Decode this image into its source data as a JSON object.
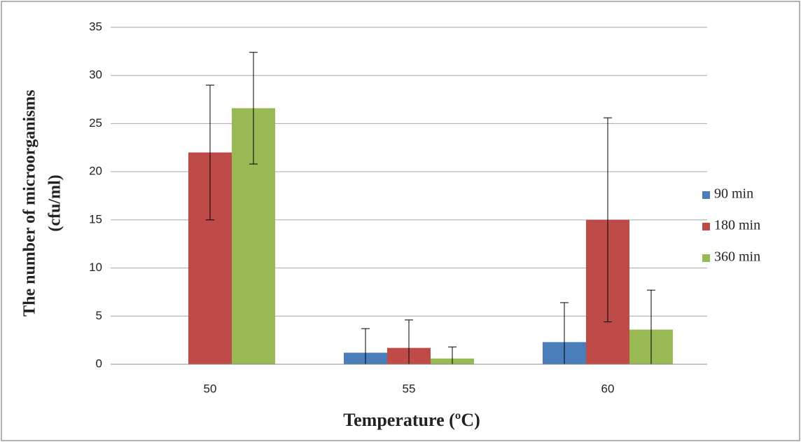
{
  "chart_data": {
    "type": "bar",
    "xlabel": "Temperature (ºC)",
    "ylabel": [
      "The number of microorganisms",
      "(cfu/ml)"
    ],
    "categories": [
      "50",
      "55",
      "60"
    ],
    "series": [
      {
        "name": "90 min",
        "color": "#4a7ebb",
        "values": [
          0,
          1.2,
          2.3
        ],
        "errors": [
          0,
          2.5,
          4.1
        ]
      },
      {
        "name": "180 min",
        "color": "#be4b48",
        "values": [
          22.0,
          1.7,
          15.0
        ],
        "errors": [
          7.0,
          2.9,
          10.6
        ]
      },
      {
        "name": "360 min",
        "color": "#98b954",
        "values": [
          26.6,
          0.6,
          3.6
        ],
        "errors": [
          5.8,
          1.2,
          4.1
        ]
      }
    ],
    "ylim": [
      0,
      35
    ],
    "yticks": [
      0,
      5,
      10,
      15,
      20,
      25,
      30,
      35
    ],
    "grid": true,
    "legend": "right"
  }
}
